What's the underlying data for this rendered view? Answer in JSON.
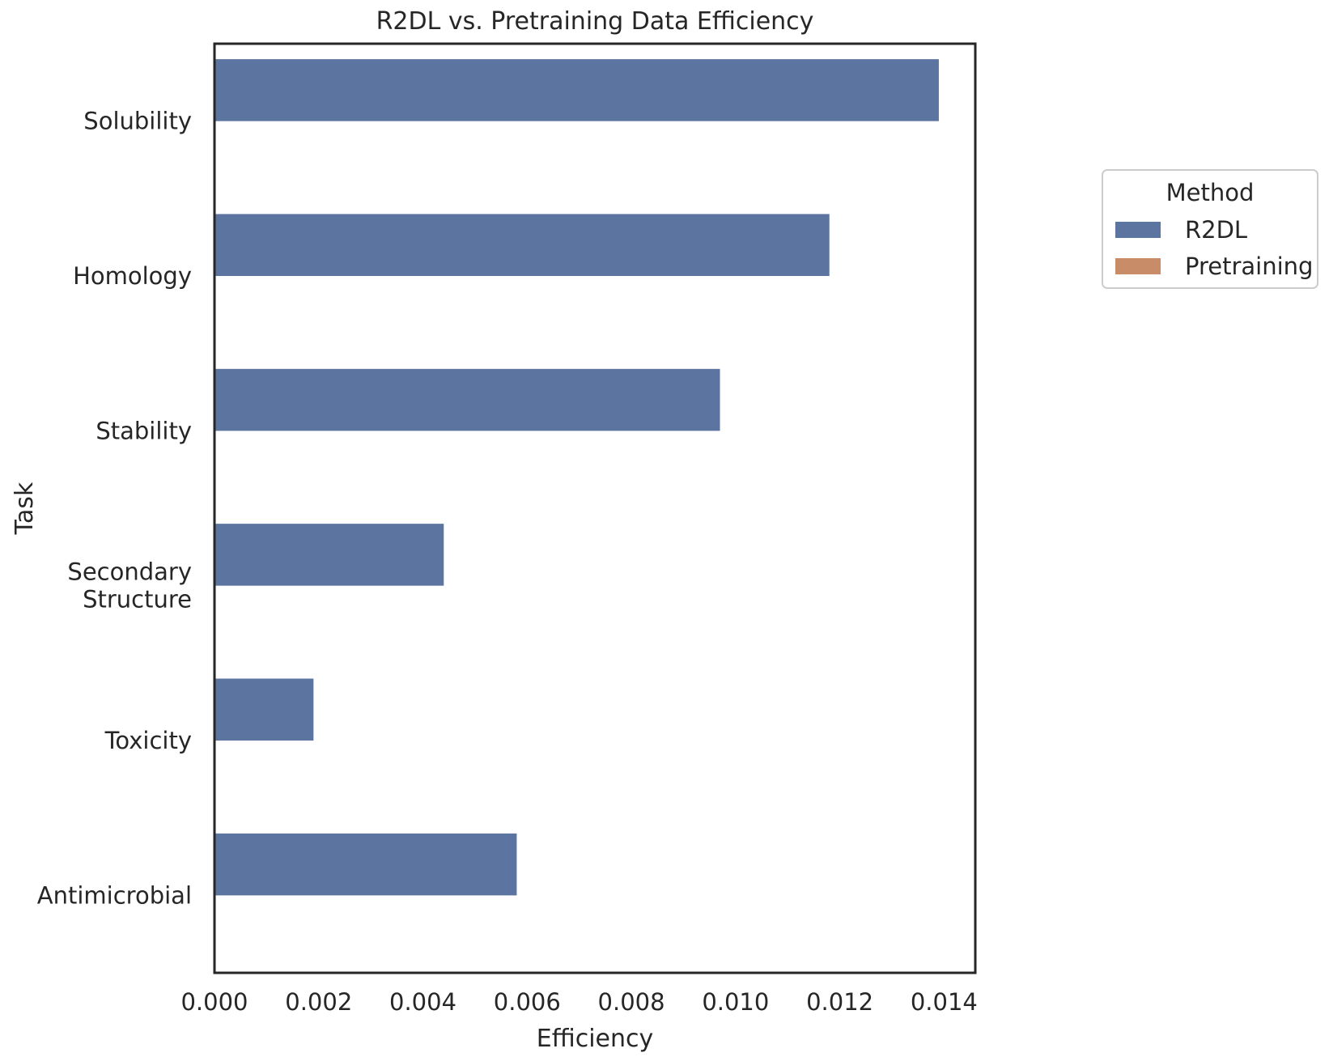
{
  "chart_data": {
    "type": "bar",
    "orientation": "horizontal",
    "title": "R2DL vs. Pretraining Data Efficiency",
    "xlabel": "Efficiency",
    "ylabel": "Task",
    "categories": [
      [
        "Solubility"
      ],
      [
        "Homology"
      ],
      [
        "Stability"
      ],
      [
        "Secondary",
        "Structure"
      ],
      [
        "Toxicity"
      ],
      [
        "Antimicrobial"
      ]
    ],
    "series": [
      {
        "name": "R2DL",
        "color": "#5b74a0",
        "values": [
          0.0139,
          0.0118,
          0.0097,
          0.0044,
          0.0019,
          0.0058
        ]
      },
      {
        "name": "Pretraining",
        "color": "#c98c68",
        "values": [
          0.0,
          0.0,
          0.0,
          0.0,
          0.0,
          0.0
        ]
      }
    ],
    "xlim": [
      0.0,
      0.0146
    ],
    "xticks": [
      0.0,
      0.002,
      0.004,
      0.006,
      0.008,
      0.01,
      0.012,
      0.014
    ],
    "xtick_labels": [
      "0.000",
      "0.002",
      "0.004",
      "0.006",
      "0.008",
      "0.010",
      "0.012",
      "0.014"
    ],
    "grid": false,
    "legend": {
      "title": "Method",
      "placement": "outside-right-upper"
    }
  }
}
